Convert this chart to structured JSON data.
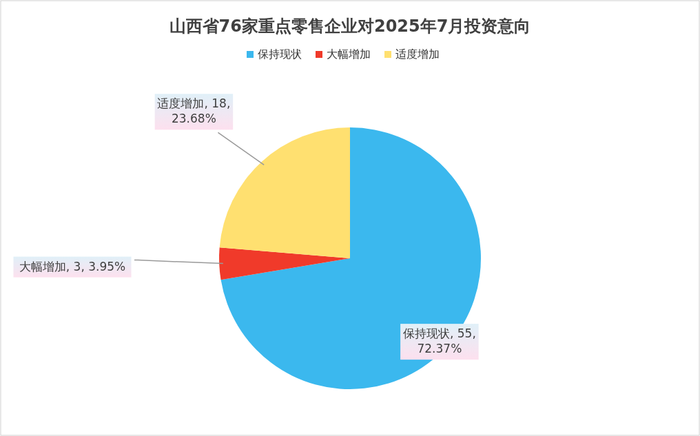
{
  "chart_data": {
    "type": "pie",
    "title": "山西省76家重点零售企业对2025年7月投资意向",
    "categories": [
      "保持现状",
      "大幅增加",
      "适度增加"
    ],
    "values": [
      55,
      3,
      18
    ],
    "colors": [
      "#3bb8ee",
      "#f03a2a",
      "#ffe070"
    ],
    "value_labels": [
      "保持现状, 55, 72.37%",
      "大幅增加, 3, 3.95%",
      "适度增加, 18, 23.68%"
    ],
    "legend": "top"
  }
}
